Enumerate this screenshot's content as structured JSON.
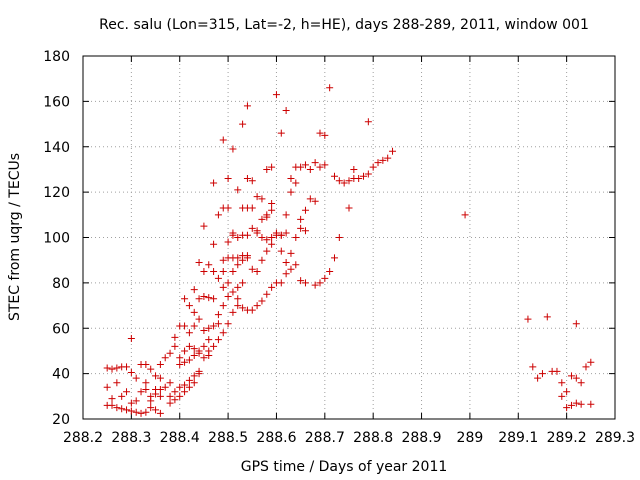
{
  "chart_data": {
    "type": "scatter",
    "title": "Rec. salu (Lon=315, Lat=-2, h=HE), days 288-289, 2011, window 001",
    "xlabel": "GPS time / Days of year 2011",
    "ylabel": "STEC from uqrg / TECUs",
    "xlim": [
      288.2,
      289.3
    ],
    "ylim": [
      20,
      180
    ],
    "xticks": [
      288.2,
      288.3,
      288.4,
      288.5,
      288.6,
      288.7,
      288.8,
      288.9,
      289,
      289.1,
      289.2,
      289.3
    ],
    "xtick_labels": [
      "288.2",
      "288.3",
      "288.4",
      "288.5",
      "288.6",
      "288.7",
      "288.8",
      "288.9",
      "289",
      "289.1",
      "289.2",
      "289.3"
    ],
    "yticks": [
      20,
      40,
      60,
      80,
      100,
      120,
      140,
      160,
      180
    ],
    "ytick_labels": [
      "20",
      "40",
      "60",
      "80",
      "100",
      "120",
      "140",
      "160",
      "180"
    ],
    "grid": true,
    "marker": "plus",
    "marker_color": "#cc0000",
    "points": [
      [
        288.25,
        42.5
      ],
      [
        288.26,
        42
      ],
      [
        288.27,
        42.5
      ],
      [
        288.28,
        43
      ],
      [
        288.29,
        43
      ],
      [
        288.25,
        34
      ],
      [
        288.26,
        29
      ],
      [
        288.27,
        36
      ],
      [
        288.28,
        30
      ],
      [
        288.29,
        32
      ],
      [
        288.25,
        26
      ],
      [
        288.26,
        26
      ],
      [
        288.27,
        25
      ],
      [
        288.28,
        24.5
      ],
      [
        288.29,
        24
      ],
      [
        288.3,
        40.5
      ],
      [
        288.31,
        38
      ],
      [
        288.32,
        44
      ],
      [
        288.33,
        44
      ],
      [
        288.34,
        42
      ],
      [
        288.35,
        39
      ],
      [
        288.36,
        38
      ],
      [
        288.3,
        27
      ],
      [
        288.31,
        28
      ],
      [
        288.32,
        32
      ],
      [
        288.33,
        36
      ],
      [
        288.34,
        30
      ],
      [
        288.35,
        33
      ],
      [
        288.36,
        30
      ],
      [
        288.3,
        23.5
      ],
      [
        288.31,
        23
      ],
      [
        288.32,
        22.5
      ],
      [
        288.33,
        23
      ],
      [
        288.34,
        25
      ],
      [
        288.35,
        24
      ],
      [
        288.36,
        22.5
      ],
      [
        288.3,
        55.5
      ],
      [
        288.33,
        33
      ],
      [
        288.34,
        28
      ],
      [
        288.35,
        31
      ],
      [
        288.36,
        33
      ],
      [
        288.37,
        34
      ],
      [
        288.38,
        36
      ],
      [
        288.36,
        44
      ],
      [
        288.37,
        47
      ],
      [
        288.38,
        49
      ],
      [
        288.39,
        52
      ],
      [
        288.39,
        56
      ],
      [
        288.4,
        61
      ],
      [
        288.41,
        61
      ],
      [
        288.38,
        30
      ],
      [
        288.39,
        32
      ],
      [
        288.4,
        34
      ],
      [
        288.41,
        35
      ],
      [
        288.42,
        37
      ],
      [
        288.43,
        39
      ],
      [
        288.44,
        41
      ],
      [
        288.38,
        27
      ],
      [
        288.39,
        28.5
      ],
      [
        288.4,
        30
      ],
      [
        288.41,
        32
      ],
      [
        288.42,
        34
      ],
      [
        288.43,
        36
      ],
      [
        288.44,
        40
      ],
      [
        288.4,
        47
      ],
      [
        288.41,
        50
      ],
      [
        288.42,
        52
      ],
      [
        288.43,
        51
      ],
      [
        288.44,
        49
      ],
      [
        288.45,
        47
      ],
      [
        288.46,
        50
      ],
      [
        288.4,
        44
      ],
      [
        288.41,
        45
      ],
      [
        288.42,
        46
      ],
      [
        288.43,
        48
      ],
      [
        288.44,
        50
      ],
      [
        288.45,
        52
      ],
      [
        288.46,
        55
      ],
      [
        288.42,
        58
      ],
      [
        288.43,
        61
      ],
      [
        288.44,
        64
      ],
      [
        288.45,
        59
      ],
      [
        288.46,
        60
      ],
      [
        288.47,
        61
      ],
      [
        288.48,
        62
      ],
      [
        288.41,
        73
      ],
      [
        288.42,
        70
      ],
      [
        288.43,
        67
      ],
      [
        288.44,
        73
      ],
      [
        288.45,
        74
      ],
      [
        288.46,
        73.5
      ],
      [
        288.47,
        73
      ],
      [
        288.43,
        77
      ],
      [
        288.44,
        89
      ],
      [
        288.45,
        85
      ],
      [
        288.46,
        88
      ],
      [
        288.47,
        85
      ],
      [
        288.48,
        82
      ],
      [
        288.49,
        85
      ],
      [
        288.45,
        105
      ],
      [
        288.47,
        97
      ],
      [
        288.48,
        110
      ],
      [
        288.49,
        113
      ],
      [
        288.5,
        113
      ],
      [
        288.51,
        101
      ],
      [
        288.47,
        124
      ],
      [
        288.49,
        143
      ],
      [
        288.5,
        126
      ],
      [
        288.51,
        139
      ],
      [
        288.52,
        121
      ],
      [
        288.53,
        150
      ],
      [
        288.54,
        158
      ],
      [
        288.46,
        48
      ],
      [
        288.47,
        52
      ],
      [
        288.48,
        55
      ],
      [
        288.49,
        58
      ],
      [
        288.5,
        62
      ],
      [
        288.51,
        67
      ],
      [
        288.52,
        70
      ],
      [
        288.48,
        66
      ],
      [
        288.49,
        70
      ],
      [
        288.5,
        74
      ],
      [
        288.51,
        76
      ],
      [
        288.52,
        78
      ],
      [
        288.53,
        80
      ],
      [
        288.49,
        78
      ],
      [
        288.5,
        80
      ],
      [
        288.51,
        85
      ],
      [
        288.52,
        88
      ],
      [
        288.53,
        90
      ],
      [
        288.54,
        92
      ],
      [
        288.49,
        90
      ],
      [
        288.5,
        91
      ],
      [
        288.51,
        91
      ],
      [
        288.52,
        91
      ],
      [
        288.53,
        92
      ],
      [
        288.54,
        91
      ],
      [
        288.5,
        98
      ],
      [
        288.51,
        102
      ],
      [
        288.52,
        100
      ],
      [
        288.53,
        101
      ],
      [
        288.54,
        101
      ],
      [
        288.55,
        104
      ],
      [
        288.56,
        102
      ],
      [
        288.53,
        113
      ],
      [
        288.54,
        113
      ],
      [
        288.55,
        113
      ],
      [
        288.56,
        118
      ],
      [
        288.57,
        117
      ],
      [
        288.58,
        110
      ],
      [
        288.59,
        115
      ],
      [
        288.54,
        126
      ],
      [
        288.55,
        125
      ],
      [
        288.57,
        108
      ],
      [
        288.58,
        109
      ],
      [
        288.59,
        112
      ],
      [
        288.6,
        102
      ],
      [
        288.52,
        73
      ],
      [
        288.53,
        69
      ],
      [
        288.54,
        68
      ],
      [
        288.55,
        68
      ],
      [
        288.56,
        70
      ],
      [
        288.57,
        72
      ],
      [
        288.58,
        75
      ],
      [
        288.59,
        78
      ],
      [
        288.55,
        86
      ],
      [
        288.56,
        85
      ],
      [
        288.57,
        90
      ],
      [
        288.58,
        94
      ],
      [
        288.59,
        100
      ],
      [
        288.6,
        101
      ],
      [
        288.61,
        101
      ],
      [
        288.56,
        103
      ],
      [
        288.57,
        100
      ],
      [
        288.58,
        99
      ],
      [
        288.59,
        97
      ],
      [
        288.6,
        102
      ],
      [
        288.61,
        101
      ],
      [
        288.62,
        102
      ],
      [
        288.58,
        130
      ],
      [
        288.59,
        131
      ],
      [
        288.6,
        163
      ],
      [
        288.61,
        146
      ],
      [
        288.62,
        156
      ],
      [
        288.63,
        120
      ],
      [
        288.6,
        80
      ],
      [
        288.61,
        80
      ],
      [
        288.62,
        84
      ],
      [
        288.63,
        86
      ],
      [
        288.64,
        88
      ],
      [
        288.65,
        81
      ],
      [
        288.66,
        80
      ],
      [
        288.61,
        94
      ],
      [
        288.62,
        89
      ],
      [
        288.63,
        93
      ],
      [
        288.64,
        100
      ],
      [
        288.65,
        104
      ],
      [
        288.66,
        103
      ],
      [
        288.62,
        110
      ],
      [
        288.63,
        126
      ],
      [
        288.64,
        124
      ],
      [
        288.65,
        108
      ],
      [
        288.66,
        112
      ],
      [
        288.67,
        117
      ],
      [
        288.68,
        116
      ],
      [
        288.64,
        131
      ],
      [
        288.65,
        131
      ],
      [
        288.66,
        132
      ],
      [
        288.67,
        130
      ],
      [
        288.68,
        133
      ],
      [
        288.69,
        131
      ],
      [
        288.7,
        132
      ],
      [
        288.68,
        79
      ],
      [
        288.69,
        80
      ],
      [
        288.7,
        82
      ],
      [
        288.71,
        85
      ],
      [
        288.72,
        91
      ],
      [
        288.73,
        100
      ],
      [
        288.69,
        146
      ],
      [
        288.7,
        145
      ],
      [
        288.71,
        166
      ],
      [
        288.72,
        127
      ],
      [
        288.73,
        125
      ],
      [
        288.74,
        124
      ],
      [
        288.75,
        125
      ],
      [
        288.76,
        126
      ],
      [
        288.77,
        126
      ],
      [
        288.78,
        127
      ],
      [
        288.79,
        128
      ],
      [
        288.8,
        131
      ],
      [
        288.81,
        133
      ],
      [
        288.82,
        134
      ],
      [
        288.83,
        135
      ],
      [
        288.84,
        138
      ],
      [
        288.75,
        113
      ],
      [
        288.76,
        130
      ],
      [
        288.79,
        151
      ],
      [
        288.99,
        110
      ],
      [
        289.12,
        64
      ],
      [
        289.13,
        43
      ],
      [
        289.14,
        38
      ],
      [
        289.15,
        40
      ],
      [
        289.16,
        65
      ],
      [
        289.17,
        41
      ],
      [
        289.18,
        41
      ],
      [
        289.19,
        36
      ],
      [
        289.19,
        30
      ],
      [
        289.2,
        32
      ],
      [
        289.2,
        25
      ],
      [
        289.21,
        26
      ],
      [
        289.22,
        62
      ],
      [
        289.21,
        39
      ],
      [
        289.22,
        38
      ],
      [
        289.23,
        36
      ],
      [
        289.23,
        26.5
      ],
      [
        289.24,
        43
      ],
      [
        289.25,
        45
      ],
      [
        289.25,
        26.5
      ],
      [
        289.22,
        27
      ]
    ]
  }
}
